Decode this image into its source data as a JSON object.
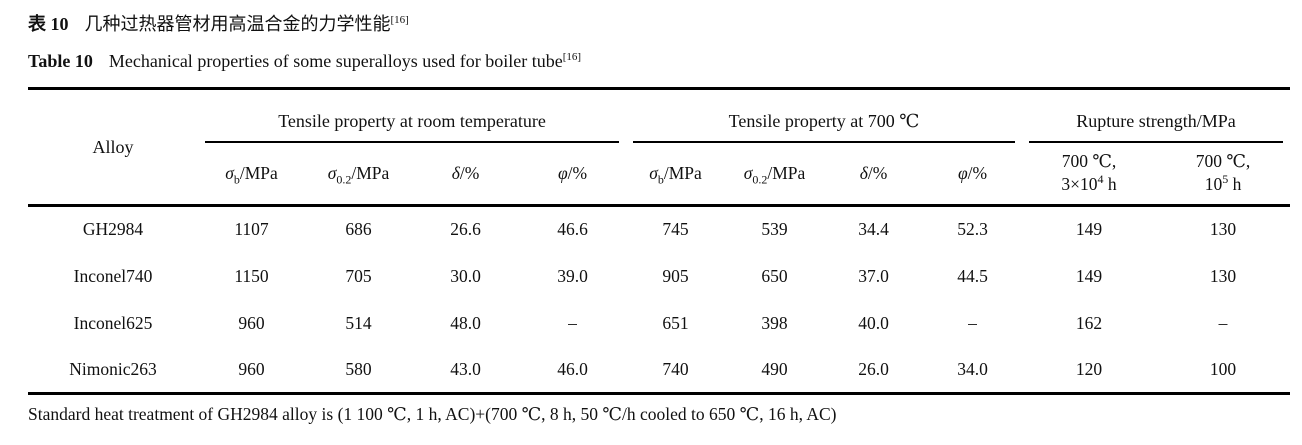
{
  "caption": {
    "zh_label": "表 10",
    "zh_title": "几种过热器管材用高温合金的力学性能",
    "zh_ref": "[16]",
    "en_label": "Table 10",
    "en_title": "Mechanical properties of some superalloys used for boiler tube",
    "en_ref": "[16]"
  },
  "table": {
    "alloy_header": "Alloy",
    "groups": [
      "Tensile property at room temperature",
      "Tensile property at 700 ℃",
      "Rupture strength/MPa"
    ],
    "subcols": [
      {
        "sym": "σ",
        "sub": "b",
        "rest": "/MPa"
      },
      {
        "sym": "σ",
        "sub": "0.2",
        "rest": "/MPa"
      },
      {
        "sym": "δ",
        "sub": "",
        "rest": "/%"
      },
      {
        "sym": "φ",
        "sub": "",
        "rest": "/%"
      },
      {
        "sym": "σ",
        "sub": "b",
        "rest": "/MPa"
      },
      {
        "sym": "σ",
        "sub": "0.2",
        "rest": "/MPa"
      },
      {
        "sym": "δ",
        "sub": "",
        "rest": "/%"
      },
      {
        "sym": "φ",
        "sub": "",
        "rest": "/%"
      }
    ],
    "rupture_cols": [
      {
        "line1": "700 ℃,",
        "base": "3×10",
        "sup": "4",
        "after": " h"
      },
      {
        "line1": "700 ℃,",
        "base": "10",
        "sup": "5",
        "after": " h"
      }
    ],
    "rows": [
      {
        "alloy": "GH2984",
        "values": [
          "1107",
          "686",
          "26.6",
          "46.6",
          "745",
          "539",
          "34.4",
          "52.3",
          "149",
          "130"
        ]
      },
      {
        "alloy": "Inconel740",
        "values": [
          "1150",
          "705",
          "30.0",
          "39.0",
          "905",
          "650",
          "37.0",
          "44.5",
          "149",
          "130"
        ]
      },
      {
        "alloy": "Inconel625",
        "values": [
          "960",
          "514",
          "48.0",
          "–",
          "651",
          "398",
          "40.0",
          "–",
          "162",
          "–"
        ]
      },
      {
        "alloy": "Nimonic263",
        "values": [
          "960",
          "580",
          "43.0",
          "46.0",
          "740",
          "490",
          "26.0",
          "34.0",
          "120",
          "100"
        ]
      }
    ],
    "footnote": "Standard heat treatment of GH2984 alloy is (1 100 ℃, 1 h, AC)+(700 ℃, 8 h, 50 ℃/h cooled to 650 ℃, 16 h, AC)"
  },
  "colors": {
    "background": "#ffffff",
    "text": "#111111",
    "rule": "#000000"
  }
}
